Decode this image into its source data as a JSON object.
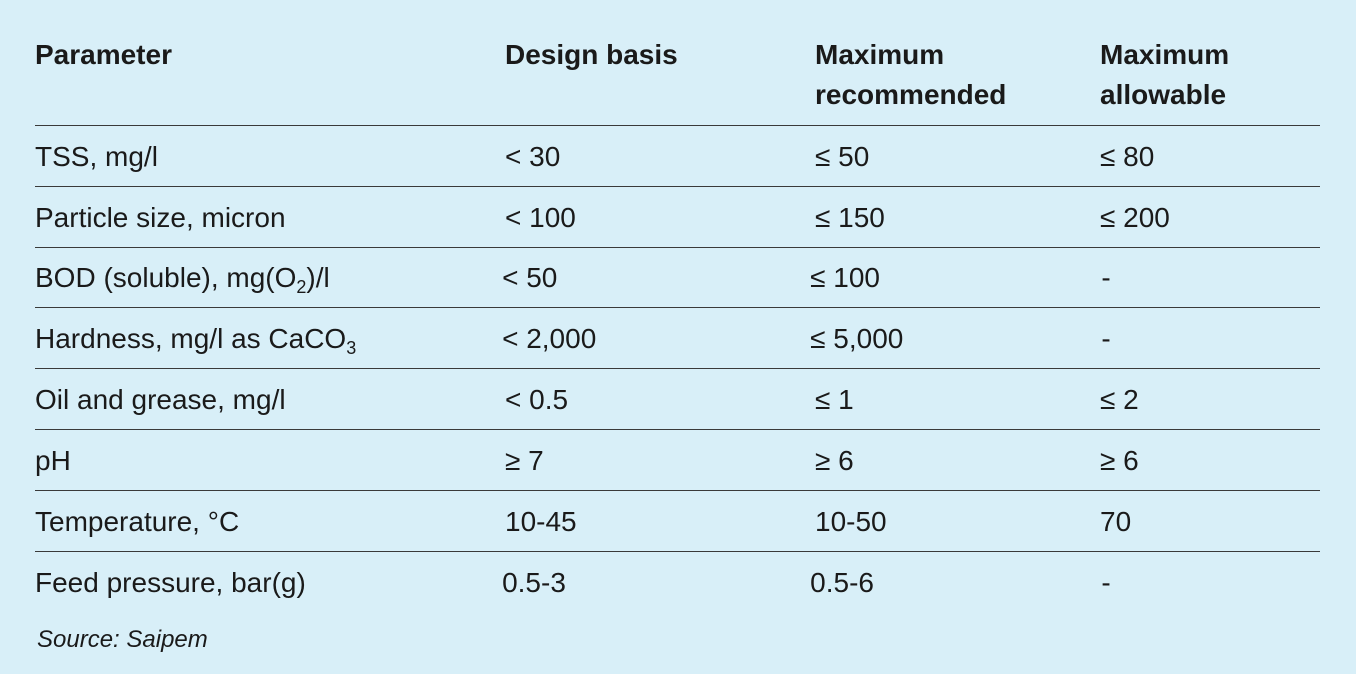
{
  "table": {
    "headers": [
      "Parameter",
      "Design basis",
      "Maximum recommended",
      "Maximum allowable"
    ],
    "rows": [
      {
        "parameter": "TSS, mg/l",
        "parameter_sub": "",
        "parameter_tail": "",
        "design_basis": "< 30",
        "max_recommended": "≤ 50",
        "max_allowable": "≤ 80"
      },
      {
        "parameter": "Particle size, micron",
        "parameter_sub": "",
        "parameter_tail": "",
        "design_basis": "< 100",
        "max_recommended": "≤ 150",
        "max_allowable": "≤ 200"
      },
      {
        "parameter": "BOD (soluble), mg(O",
        "parameter_sub": "2",
        "parameter_tail": ")/l",
        "design_basis": "< 50",
        "max_recommended": "≤ 100",
        "max_allowable": "-"
      },
      {
        "parameter": "Hardness, mg/l as CaCO",
        "parameter_sub": "3",
        "parameter_tail": "",
        "design_basis": "< 2,000",
        "max_recommended": "≤ 5,000",
        "max_allowable": "-"
      },
      {
        "parameter": "Oil and grease, mg/l",
        "parameter_sub": "",
        "parameter_tail": "",
        "design_basis": "< 0.5",
        "max_recommended": "≤ 1",
        "max_allowable": "≤ 2"
      },
      {
        "parameter": "pH",
        "parameter_sub": "",
        "parameter_tail": "",
        "design_basis": "≥ 7",
        "max_recommended": "≥ 6",
        "max_allowable": "≥ 6"
      },
      {
        "parameter": "Temperature, °C",
        "parameter_sub": "",
        "parameter_tail": "",
        "design_basis": "10-45",
        "max_recommended": "10-50",
        "max_allowable": "70"
      },
      {
        "parameter": "Feed pressure, bar(g)",
        "parameter_sub": "",
        "parameter_tail": "",
        "design_basis": "0.5-3",
        "max_recommended": "0.5-6",
        "max_allowable": "-"
      }
    ]
  },
  "source": "Source: Saipem",
  "colors": {
    "background": "#d8eff8",
    "text": "#1a1a1a",
    "rule": "#3a3a3a"
  }
}
